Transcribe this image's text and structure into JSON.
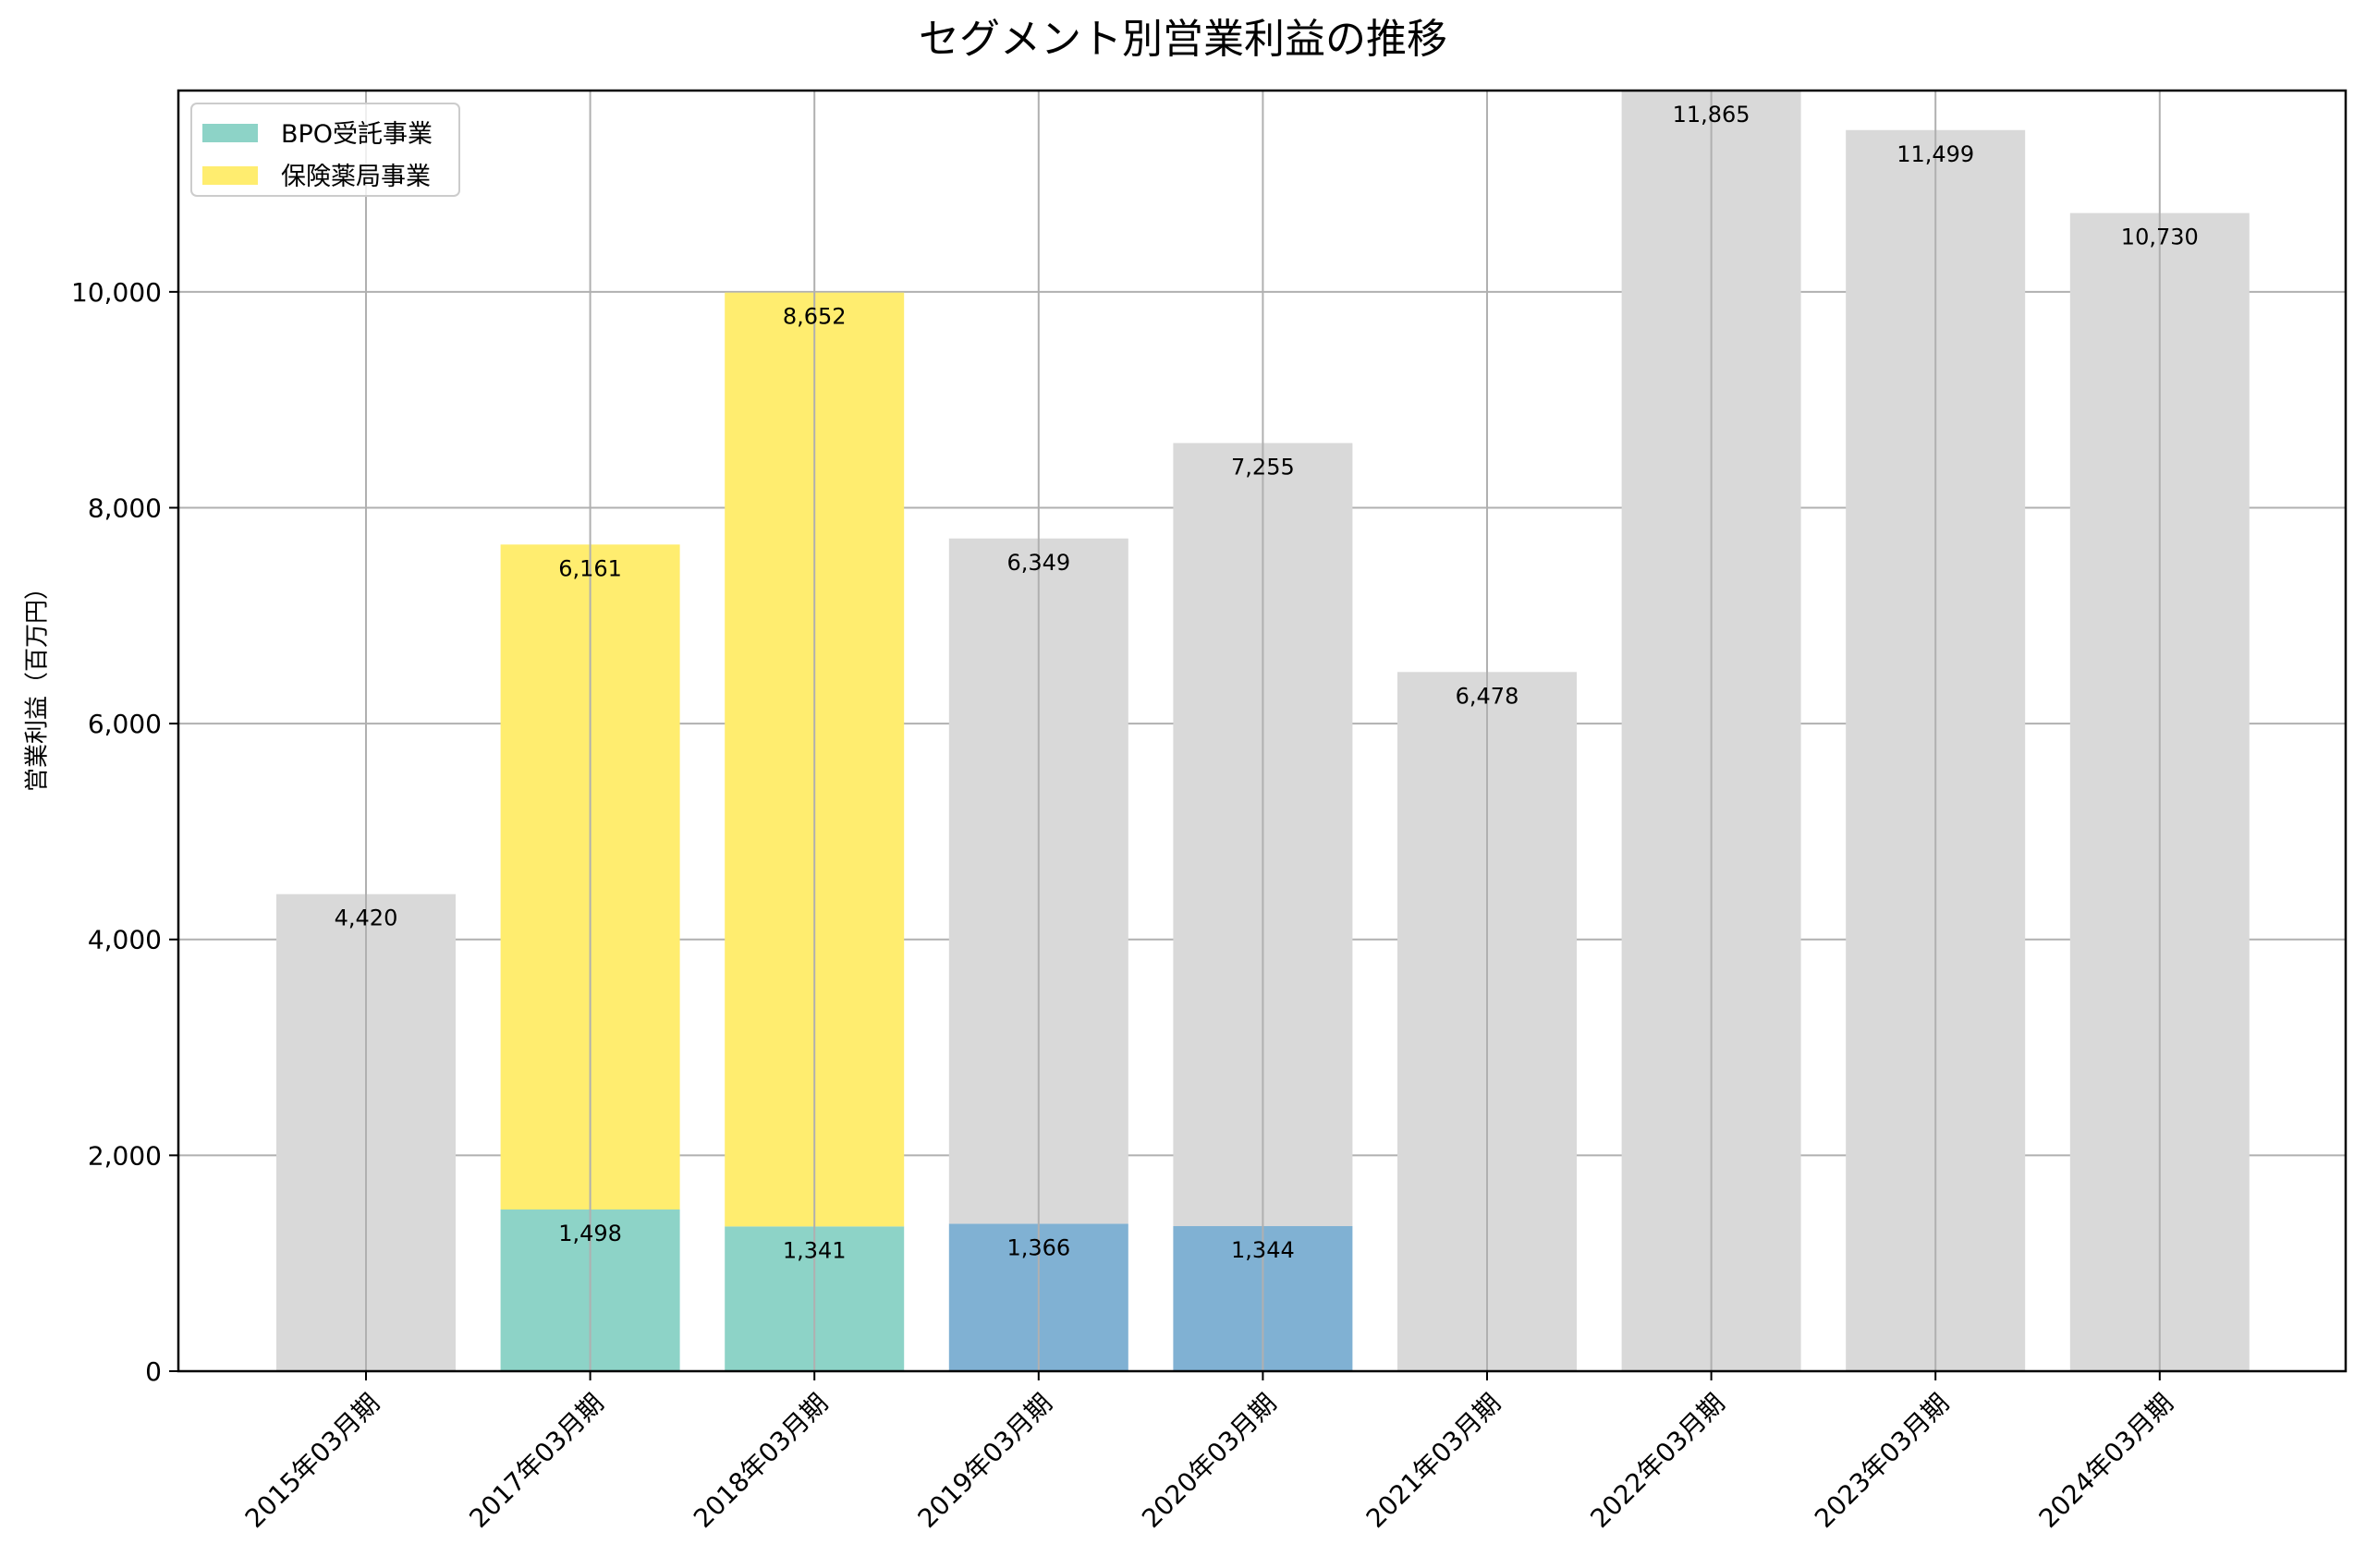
{
  "chart_data": {
    "type": "bar",
    "stacked": true,
    "title": "セグメント別営業利益の推移",
    "xlabel": "",
    "ylabel": "営業利益（百万円）",
    "ylim": [
      0,
      11865
    ],
    "yticks": [
      0,
      2000,
      4000,
      6000,
      8000,
      10000
    ],
    "ytick_labels": [
      "0",
      "2,000",
      "4,000",
      "6,000",
      "8,000",
      "10,000"
    ],
    "grid": true,
    "legend_position": "upper left",
    "categories": [
      "2015年03月期",
      "2017年03月期",
      "2018年03月期",
      "2019年03月期",
      "2020年03月期",
      "2021年03月期",
      "2022年03月期",
      "2023年03月期",
      "2024年03月期"
    ],
    "series": [
      {
        "name": "BPO受託事業",
        "color": "#8dd3c7",
        "in_legend": true,
        "values": [
          null,
          1498,
          1341,
          null,
          null,
          null,
          null,
          null,
          null
        ]
      },
      {
        "name": "保険薬局事業",
        "color": "#ffed6f",
        "in_legend": true,
        "values": [
          null,
          6161,
          8652,
          null,
          null,
          null,
          null,
          null,
          null
        ]
      },
      {
        "name": "",
        "color": "#80b1d3",
        "in_legend": false,
        "values": [
          null,
          null,
          null,
          1366,
          1344,
          null,
          null,
          null,
          null
        ]
      },
      {
        "name": "",
        "color": "#d9d9d9",
        "in_legend": false,
        "values": [
          4420,
          null,
          null,
          6349,
          7255,
          6478,
          11865,
          11499,
          10730
        ]
      }
    ],
    "bar_labels": [
      [
        "4,420"
      ],
      [
        "1,498",
        "6,161"
      ],
      [
        "1,341",
        "8,652"
      ],
      [
        "1,366",
        "6,349"
      ],
      [
        "1,344",
        "7,255"
      ],
      [
        "6,478"
      ],
      [
        "11,865"
      ],
      [
        "11,499"
      ],
      [
        "10,730"
      ]
    ]
  },
  "legend": {
    "items": [
      {
        "label": "BPO受託事業",
        "color": "#8dd3c7"
      },
      {
        "label": "保険薬局事業",
        "color": "#ffed6f"
      }
    ]
  },
  "colors": {
    "grid": "#b0b0b0",
    "axis": "#000000",
    "background": "#ffffff"
  }
}
